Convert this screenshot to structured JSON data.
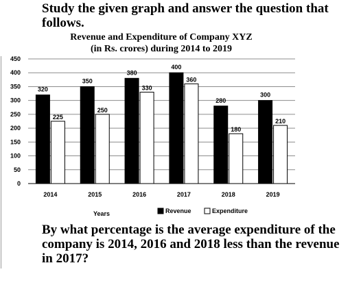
{
  "lead_text": "Study the given graph and answer the question that follows.",
  "question_text": "By what percentage is the average expenditure of the company is 2014, 2016 and 2018 less than the revenue in 2017?",
  "chart_data": {
    "type": "bar",
    "title_lines": [
      "Revenue and Expenditure of Company XYZ",
      "(in Rs. crores) during 2014 to 2019"
    ],
    "categories": [
      "2014",
      "2015",
      "2016",
      "2017",
      "2018",
      "2019"
    ],
    "series": [
      {
        "name": "Revenue",
        "values": [
          320,
          350,
          380,
          400,
          280,
          300
        ],
        "color": "#000000"
      },
      {
        "name": "Expenditure",
        "values": [
          225,
          250,
          330,
          360,
          180,
          210
        ],
        "color": "#ffffff"
      }
    ],
    "xlabel": "Years",
    "ylabel": "",
    "ylim": [
      0,
      450
    ],
    "yticks": [
      0,
      50,
      100,
      150,
      200,
      250,
      300,
      350,
      400,
      450
    ],
    "grid": true,
    "legend_position": "bottom"
  }
}
